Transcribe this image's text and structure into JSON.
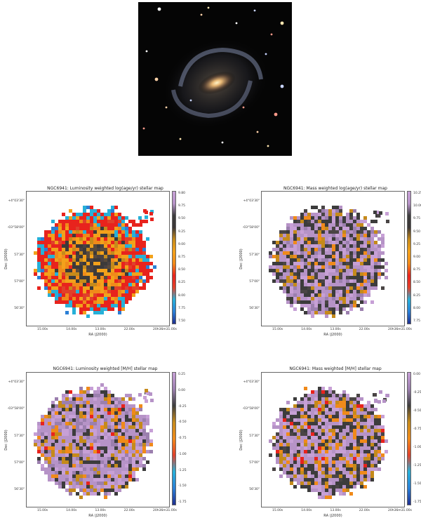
{
  "figure": {
    "panels": [
      {
        "title": "NGC6941: Luminosity weighted log(age/yr) stellar map",
        "xlabel": "RA (J2000)",
        "ylabel": "Dec (J2000)",
        "xticks": [
          "15.00s",
          "14.00s",
          "13.00s",
          "22.00s",
          "20h36m31.00s"
        ],
        "yticks": [
          "+4°03'30\"",
          "-03°58'00\"",
          "57'30\"",
          "57'00\"",
          "56'30\""
        ],
        "cbar_ticks": [
          "9.80",
          "9.75",
          "9.50",
          "9.25",
          "9.00",
          "8.75",
          "8.50",
          "8.25",
          "8.00",
          "7.75",
          "7.50"
        ],
        "cmap": "age",
        "dist": "lum-age"
      },
      {
        "title": "NGC6941: Mass weighted log(age/yr) stellar map",
        "xlabel": "RA (J2000)",
        "ylabel": "Dec (J2000)",
        "xticks": [
          "15.00s",
          "14.00s",
          "13.00s",
          "22.00s",
          "20h36m31.00s"
        ],
        "yticks": [
          "+4°03'30\"",
          "-03°58'00\"",
          "57'30\"",
          "57'00\"",
          "56'30\""
        ],
        "cbar_ticks": [
          "10.25",
          "10.00",
          "9.75",
          "9.50",
          "9.25",
          "9.00",
          "8.75",
          "8.50",
          "8.25",
          "8.00",
          "7.75"
        ],
        "cmap": "age",
        "dist": "mass-age"
      },
      {
        "title": "NGC6941: Luminosity weighted [M/H] stellar map",
        "xlabel": "RA (J2000)",
        "ylabel": "Dec (J2000)",
        "xticks": [
          "15.00s",
          "14.00s",
          "13.00s",
          "22.00s",
          "20h36m31.00s"
        ],
        "yticks": [
          "+4°03'30\"",
          "-03°58'00\"",
          "57'30\"",
          "57'00\"",
          "56'30\""
        ],
        "cbar_ticks": [
          "0.25",
          "0.00",
          "-0.25",
          "-0.50",
          "-0.75",
          "-1.00",
          "-1.25",
          "-1.50",
          "-1.75"
        ],
        "cmap": "metal",
        "dist": "lum-met"
      },
      {
        "title": "NGC6941: Mass weighted [M/H] stellar map",
        "xlabel": "RA (J2000)",
        "ylabel": "Dec (J2000)",
        "xticks": [
          "15.00s",
          "14.00s",
          "13.00s",
          "22.00s",
          "20h36m31.00s"
        ],
        "yticks": [
          "+4°03'30\"",
          "-03°58'00\"",
          "57'30\"",
          "57'00\"",
          "56'30\""
        ],
        "cbar_ticks": [
          "0.00",
          "-0.25",
          "-0.50",
          "-0.75",
          "-1.00",
          "-1.25",
          "-1.50",
          "-1.75"
        ],
        "cmap": "metal",
        "dist": "mass-met"
      }
    ],
    "colors": {
      "bg_space": "#050505",
      "age_scale": [
        "#1f2f8f",
        "#2a7fd6",
        "#27b0d8",
        "#e0402a",
        "#e8231d",
        "#f08a1a",
        "#f3a11b",
        "#c58a1b",
        "#3b3636",
        "#3c3c3c",
        "#b693c7",
        "#c7a0d6"
      ],
      "metal_scale": [
        "#1f2f8f",
        "#2a7fd6",
        "#27b0d8",
        "#e0402a",
        "#f08a1a",
        "#c58a1b",
        "#3c3c3c",
        "#9b7fae",
        "#c7a0d6"
      ]
    }
  }
}
